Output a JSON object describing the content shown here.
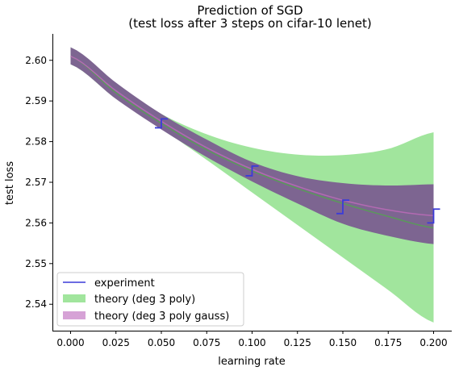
{
  "chart_data": {
    "type": "line",
    "title": "Prediction of SGD",
    "subtitle": "(test loss after 3 steps on cifar-10 lenet)",
    "xlabel": "learning rate",
    "ylabel": "test loss",
    "xlim": [
      -0.01,
      0.21
    ],
    "ylim": [
      2.5335,
      2.6065
    ],
    "xticks": [
      "0.000",
      "0.025",
      "0.050",
      "0.075",
      "0.100",
      "0.125",
      "0.150",
      "0.175",
      "0.200"
    ],
    "yticks": [
      "2.54",
      "2.55",
      "2.56",
      "2.57",
      "2.58",
      "2.59",
      "2.60"
    ],
    "grid": false,
    "legend_position": "lower-left",
    "legend": [
      {
        "label": "experiment",
        "kind": "line",
        "color": "#3b3bd9"
      },
      {
        "label": "theory (deg 3 poly)",
        "kind": "patch",
        "color": "#a1e59d"
      },
      {
        "label": "theory (deg 3 poly gauss)",
        "kind": "patch",
        "color": "#d6a2d6"
      }
    ],
    "series": [
      {
        "name": "theory (deg 3 poly)",
        "color": "#a1e59d",
        "stroke": "#5a9a5a",
        "x": [
          0.0,
          0.025,
          0.05,
          0.075,
          0.1,
          0.125,
          0.15,
          0.175,
          0.2
        ],
        "mean": [
          2.601,
          2.592,
          2.5845,
          2.578,
          2.5728,
          2.5685,
          2.5648,
          2.5616,
          2.5588
        ],
        "lower": [
          2.599,
          2.5905,
          2.5832,
          2.5755,
          2.5675,
          2.5595,
          2.5515,
          2.5435,
          2.5355
        ],
        "upper": [
          2.6032,
          2.5938,
          2.5868,
          2.5818,
          2.5785,
          2.5768,
          2.5767,
          2.5782,
          2.5823
        ]
      },
      {
        "name": "theory (deg 3 poly gauss)",
        "color": "#7d6591",
        "stroke": "#b36ab3",
        "x": [
          0.0,
          0.025,
          0.05,
          0.075,
          0.1,
          0.125,
          0.15,
          0.175,
          0.2
        ],
        "mean": [
          2.601,
          2.5925,
          2.585,
          2.5785,
          2.5732,
          2.569,
          2.5656,
          2.5632,
          2.5618
        ],
        "lower": [
          2.599,
          2.5905,
          2.583,
          2.5762,
          2.5702,
          2.5648,
          2.5598,
          2.5568,
          2.5548
        ],
        "upper": [
          2.6032,
          2.5945,
          2.5868,
          2.5805,
          2.575,
          2.5715,
          2.5698,
          2.5692,
          2.5695
        ]
      }
    ],
    "experiment": {
      "name": "experiment",
      "color": "#3b3bd9",
      "points": [
        {
          "x": 0.05,
          "low": 2.5834,
          "high": 2.5856
        },
        {
          "x": 0.1,
          "low": 2.5716,
          "high": 2.574
        },
        {
          "x": 0.15,
          "low": 2.5623,
          "high": 2.5656
        },
        {
          "x": 0.2,
          "low": 2.56,
          "high": 2.5634
        }
      ]
    }
  }
}
